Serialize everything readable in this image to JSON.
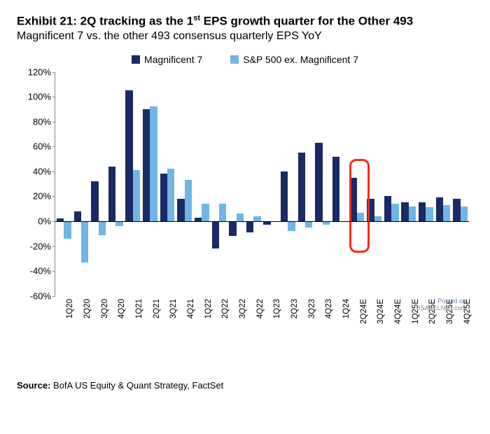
{
  "title_html": "Exhibit 21: 2Q tracking as the 1<sup>st</sup> EPS growth quarter for the Other 493",
  "subtitle": "Magnificent 7 vs. the other 493 consensus quarterly EPS YoY",
  "legend": {
    "a": "Magnificent 7",
    "b": "S&P 500 ex. Magnificent 7"
  },
  "colors": {
    "series_a": "#1a2a66",
    "series_b": "#6fb5e5",
    "axis": "#888888",
    "zero": "#000000",
    "highlight": "#ff2a1a",
    "bg": "#ffffff"
  },
  "chart": {
    "type": "bar",
    "ylim": [
      -60,
      120
    ],
    "ytick_step": 20,
    "ytick_format": "percent",
    "bar_width_ratio": 0.42,
    "categories": [
      "1Q20",
      "2Q20",
      "3Q20",
      "4Q20",
      "1Q21",
      "2Q21",
      "3Q21",
      "4Q21",
      "1Q22",
      "2Q22",
      "3Q22",
      "4Q22",
      "1Q23",
      "2Q23",
      "3Q23",
      "4Q23",
      "1Q24",
      "2Q24E",
      "3Q24E",
      "4Q24E",
      "1Q25E",
      "2Q25E",
      "3Q25E",
      "4Q25E"
    ],
    "series_a": [
      2,
      8,
      32,
      44,
      105,
      90,
      38,
      18,
      3,
      -22,
      -12,
      -9,
      -3,
      40,
      55,
      63,
      52,
      35,
      18,
      20,
      15,
      15,
      19,
      18
    ],
    "series_b": [
      -14,
      -33,
      -11,
      -4,
      41,
      92,
      42,
      33,
      14,
      14,
      6,
      4,
      0,
      -8,
      -5,
      -3,
      0,
      7,
      4,
      14,
      12,
      11,
      13,
      12
    ],
    "highlight_index": 17
  },
  "watermark": {
    "line1": "Posted on",
    "line2": "ISABELNET.com"
  },
  "source_label": "Source:",
  "source_text": "BofA US Equity & Quant Strategy, FactSet"
}
